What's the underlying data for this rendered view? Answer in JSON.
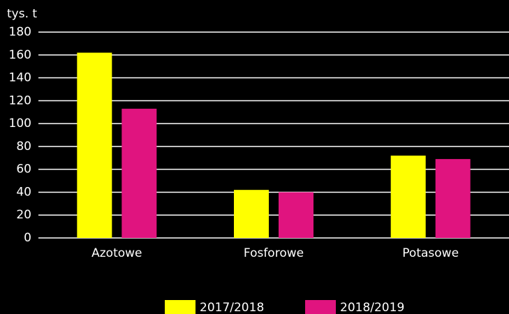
{
  "chart_data": {
    "type": "bar",
    "y_label": "tys. t",
    "categories": [
      "Azotowe",
      "Fosforowe",
      "Potasowe"
    ],
    "series": [
      {
        "name": "2017/2018",
        "color": "#ffff00",
        "values": [
          162,
          42,
          72
        ]
      },
      {
        "name": "2018/2019",
        "color": "#e0147f",
        "values": [
          113,
          40,
          69
        ]
      }
    ],
    "ylim": [
      0,
      180
    ],
    "yticks": [
      0,
      20,
      40,
      60,
      80,
      100,
      120,
      140,
      160,
      180
    ],
    "grid": true
  }
}
